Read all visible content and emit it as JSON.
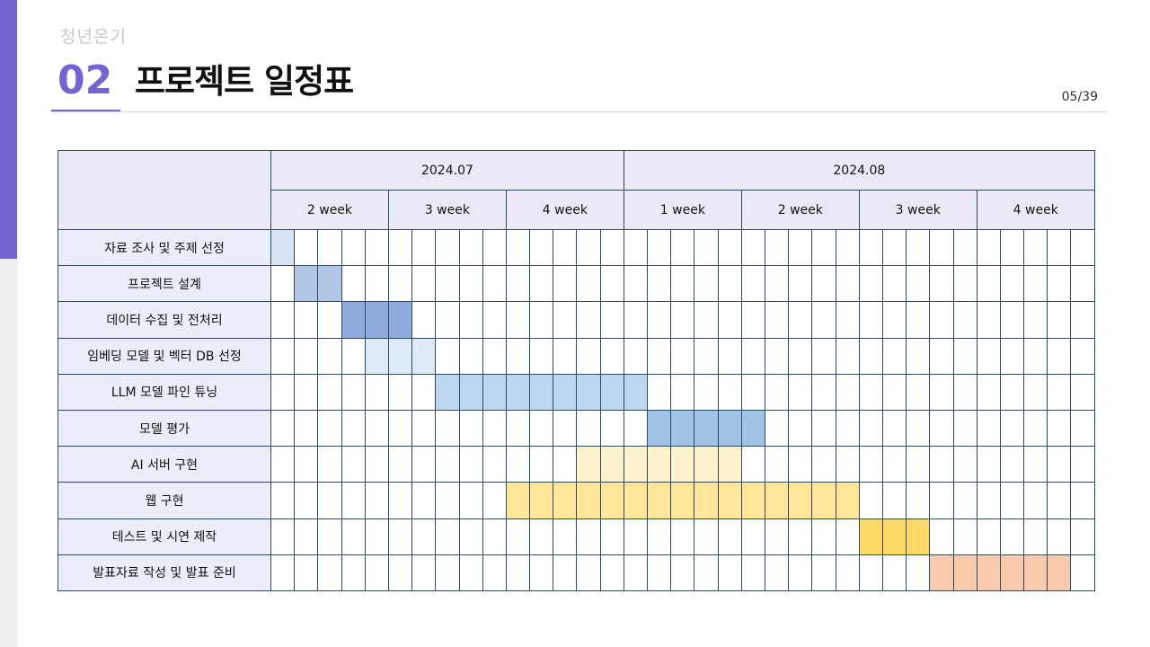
{
  "header": {
    "brand": "청년온기",
    "section_number": "02",
    "title": "프로젝트 일정표",
    "page_indicator": "05/39"
  },
  "schedule": {
    "months": [
      {
        "label": "2024.07",
        "weeks": 3
      },
      {
        "label": "2024.08",
        "weeks": 4
      }
    ],
    "weeks": [
      "2 week",
      "3 week",
      "4 week",
      "1 week",
      "2 week",
      "3 week",
      "4 week"
    ],
    "slots_per_week": 5,
    "tasks": [
      {
        "name": "자료 조사 및 주제 선정",
        "start": 0,
        "span": 1,
        "color": "#d7e3f3"
      },
      {
        "name": "프로젝트 설계",
        "start": 1,
        "span": 2,
        "color": "#b3c5e6"
      },
      {
        "name": "데이터 수집 및 전처리",
        "start": 3,
        "span": 3,
        "color": "#8faadc"
      },
      {
        "name": "임베딩 모델 및 벡터 DB 선정",
        "start": 4,
        "span": 3,
        "color": "#deebf7"
      },
      {
        "name": "LLM 모델 파인 튜닝",
        "start": 7,
        "span": 9,
        "color": "#bdd7ee"
      },
      {
        "name": "모델 평가",
        "start": 16,
        "span": 5,
        "color": "#9dc3e6"
      },
      {
        "name": "AI 서버 구현",
        "start": 13,
        "span": 7,
        "color": "#fff2cc"
      },
      {
        "name": "웹 구현",
        "start": 10,
        "span": 15,
        "color": "#ffe699"
      },
      {
        "name": "테스트 및 시연 제작",
        "start": 25,
        "span": 3,
        "color": "#ffd966"
      },
      {
        "name": "발표자료 작성 및 발표 준비",
        "start": 28,
        "span": 6,
        "color": "#f8cbad"
      }
    ]
  }
}
